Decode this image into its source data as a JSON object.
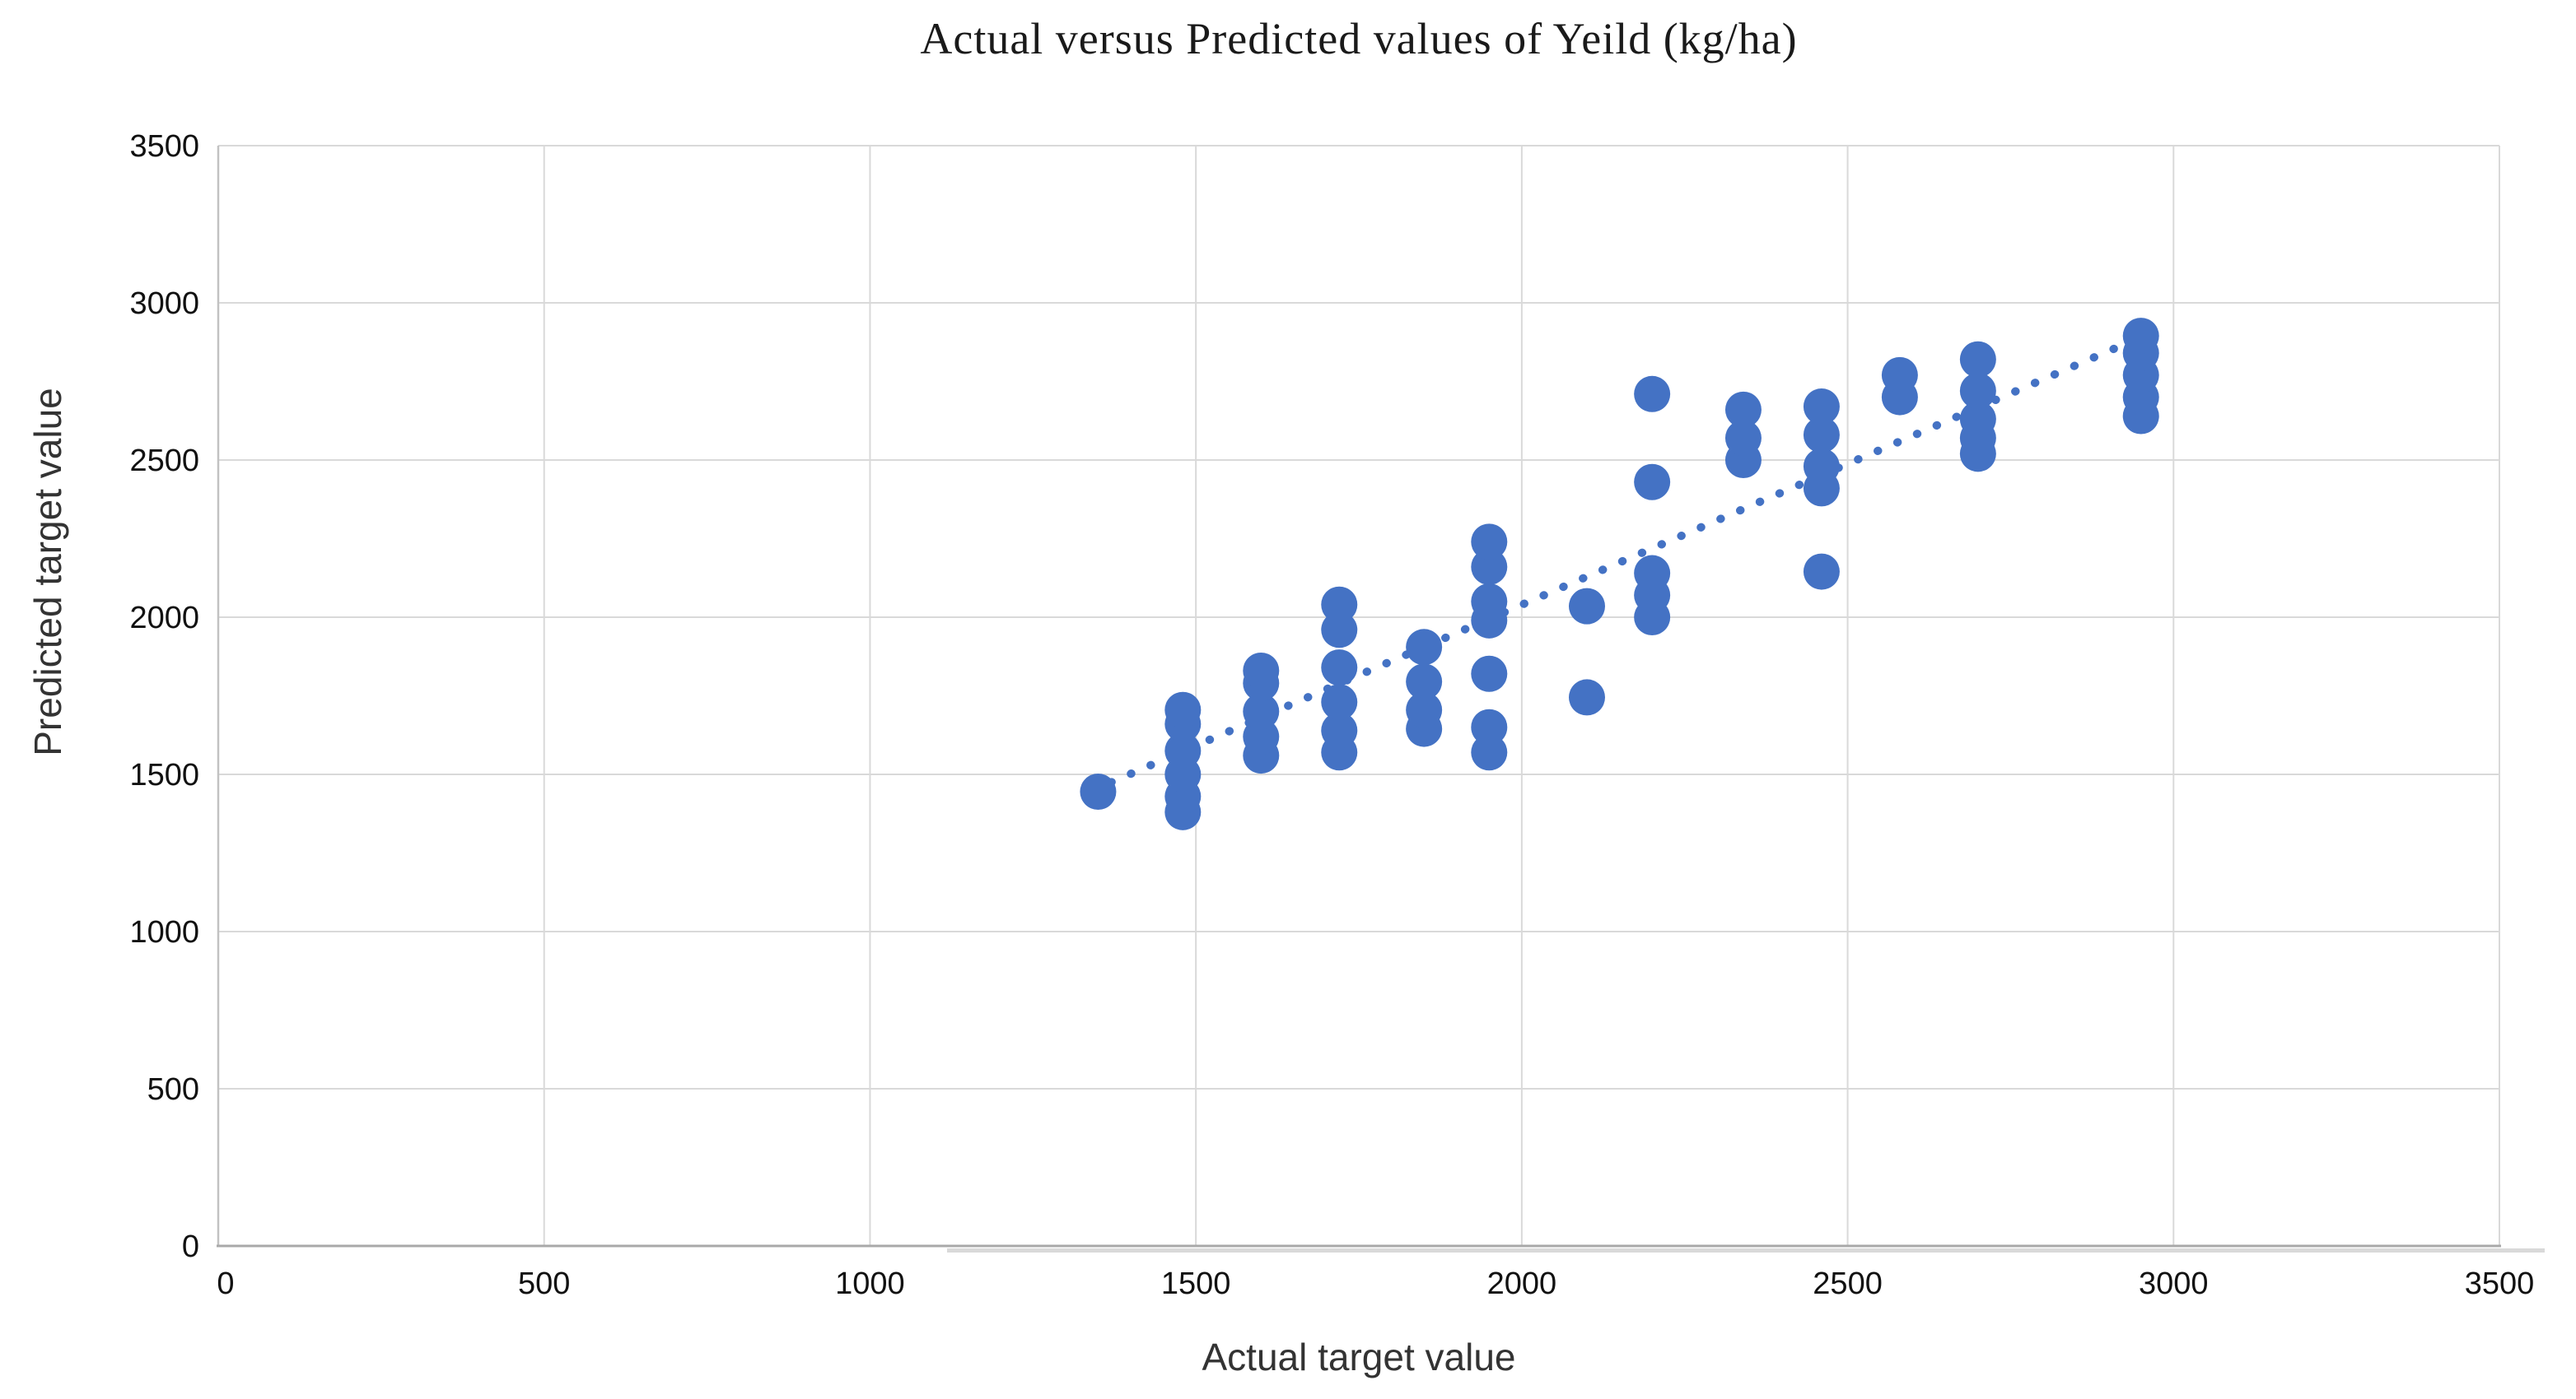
{
  "chart_data": {
    "type": "scatter",
    "title": "Actual versus Predicted values of Yeild (kg/ha)",
    "xlabel": "Actual target value",
    "ylabel": "Predicted target value",
    "xlim": [
      0,
      3500
    ],
    "ylim": [
      0,
      3500
    ],
    "x_ticks": [
      "0",
      "500",
      "1000",
      "1500",
      "2000",
      "2500",
      "3000",
      "3500"
    ],
    "y_ticks": [
      "0",
      "500",
      "1000",
      "1500",
      "2000",
      "2500",
      "3000",
      "3500"
    ],
    "tick_step": 500,
    "grid": true,
    "legend": "none",
    "marker_color": "#4472C4",
    "grid_color": "#D9D9D9",
    "axis_color": "#A9A9A9",
    "marker_radius": 22,
    "points": [
      [
        1350,
        1445
      ],
      [
        1480,
        1380
      ],
      [
        1480,
        1430
      ],
      [
        1480,
        1500
      ],
      [
        1480,
        1575
      ],
      [
        1480,
        1660
      ],
      [
        1480,
        1705
      ],
      [
        1600,
        1560
      ],
      [
        1600,
        1620
      ],
      [
        1600,
        1700
      ],
      [
        1600,
        1790
      ],
      [
        1600,
        1830
      ],
      [
        1720,
        1570
      ],
      [
        1720,
        1640
      ],
      [
        1720,
        1730
      ],
      [
        1720,
        1840
      ],
      [
        1720,
        1960
      ],
      [
        1720,
        2040
      ],
      [
        1850,
        1645
      ],
      [
        1850,
        1705
      ],
      [
        1850,
        1795
      ],
      [
        1850,
        1905
      ],
      [
        1950,
        1570
      ],
      [
        1950,
        1650
      ],
      [
        1950,
        1820
      ],
      [
        1950,
        1990
      ],
      [
        1950,
        2050
      ],
      [
        1950,
        2160
      ],
      [
        1950,
        2240
      ],
      [
        2100,
        1745
      ],
      [
        2100,
        2035
      ],
      [
        2200,
        2000
      ],
      [
        2200,
        2070
      ],
      [
        2200,
        2140
      ],
      [
        2200,
        2430
      ],
      [
        2200,
        2710
      ],
      [
        2340,
        2500
      ],
      [
        2340,
        2570
      ],
      [
        2340,
        2660
      ],
      [
        2460,
        2145
      ],
      [
        2460,
        2410
      ],
      [
        2460,
        2480
      ],
      [
        2460,
        2580
      ],
      [
        2460,
        2670
      ],
      [
        2580,
        2700
      ],
      [
        2580,
        2770
      ],
      [
        2700,
        2520
      ],
      [
        2700,
        2570
      ],
      [
        2700,
        2630
      ],
      [
        2700,
        2720
      ],
      [
        2700,
        2820
      ],
      [
        2950,
        2640
      ],
      [
        2950,
        2700
      ],
      [
        2950,
        2770
      ],
      [
        2950,
        2840
      ],
      [
        2950,
        2895
      ]
    ],
    "trendline": {
      "style": "dotted",
      "color": "#4472C4",
      "x1": 1340,
      "y1": 1448,
      "x2": 2940,
      "y2": 2882
    }
  }
}
